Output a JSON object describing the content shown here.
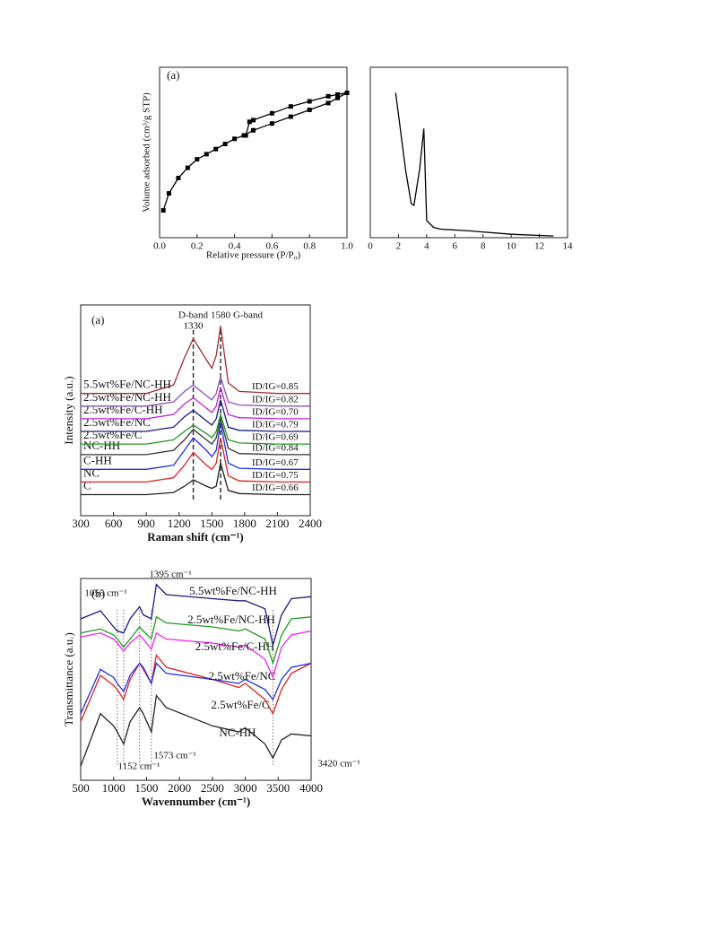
{
  "chart_data": [
    {
      "type": "line",
      "panel": "(a)",
      "xlabel": "Relative pressure (P/P₀)",
      "ylabel": "Volume adsorbed (cm³/g STP)",
      "xlim": [
        0,
        1.0
      ],
      "ylim": [
        0,
        100
      ],
      "xticks": [
        {
          "value": 0,
          "label": "0.0"
        },
        0.2,
        0.4,
        0.6,
        0.8,
        {
          "value": 1.0,
          "label": "1.0"
        }
      ],
      "markers": true,
      "series": [
        {
          "color": "#000000",
          "x": [
            0.02,
            0.05,
            0.1,
            0.15,
            0.2,
            0.25,
            0.3,
            0.35,
            0.4,
            0.45,
            0.5,
            0.6,
            0.7,
            0.8,
            0.9,
            0.95,
            1.0
          ],
          "values": [
            16,
            26,
            35,
            41,
            46,
            49,
            52,
            55,
            58,
            60,
            63,
            67,
            71,
            75,
            79,
            82,
            85
          ]
        },
        {
          "color": "#000000",
          "x": [
            1.0,
            0.95,
            0.9,
            0.8,
            0.7,
            0.6,
            0.5,
            0.48,
            0.46
          ],
          "values": [
            85,
            84,
            83,
            80,
            77,
            73,
            69,
            68,
            60
          ]
        }
      ]
    },
    {
      "type": "line",
      "xlim": [
        0,
        14
      ],
      "ylim": [
        0,
        100
      ],
      "xticks": [
        0,
        2,
        4,
        6,
        8,
        10,
        12,
        14
      ],
      "markers": false,
      "series": [
        {
          "color": "#000000",
          "x": [
            1.8,
            2.5,
            2.9,
            3.1,
            3.5,
            3.8,
            4.0,
            4.5,
            5,
            7,
            10,
            13
          ],
          "values": [
            85,
            40,
            20,
            19,
            40,
            64,
            10,
            6,
            5,
            4,
            2,
            1
          ]
        }
      ]
    },
    {
      "type": "line",
      "panel": "(a)",
      "xlabel": "Raman shift (cm⁻¹)",
      "ylabel": "Intensity (a.u.)",
      "xlim": [
        300,
        2400
      ],
      "ylim": [
        0,
        100
      ],
      "xticks": [
        300,
        600,
        900,
        1200,
        1500,
        1800,
        2100,
        2400
      ],
      "reference_lines": [
        {
          "value": 1330,
          "label": "D-band"
        },
        {
          "value": 1580,
          "label": "G-band"
        }
      ],
      "x": [
        300,
        900,
        1150,
        1250,
        1330,
        1450,
        1500,
        1540,
        1580,
        1650,
        1750,
        2100,
        2400
      ],
      "series": [
        {
          "name": "C",
          "color": "#222222",
          "ratio_label": "ID/IG=0.66",
          "values": [
            10,
            10,
            11,
            14,
            17,
            14,
            13,
            14,
            25,
            12,
            10.5,
            10,
            10
          ]
        },
        {
          "name": "NC",
          "color": "#e02020",
          "ratio_label": "ID/IG=0.75",
          "values": [
            16,
            16,
            18,
            24,
            30,
            24,
            22,
            25,
            37,
            19,
            16.5,
            16,
            16
          ]
        },
        {
          "name": "C-HH",
          "color": "#2030e0",
          "ratio_label": "ID/IG=0.67",
          "values": [
            22,
            22,
            24,
            31,
            37,
            31,
            28,
            31,
            44,
            25,
            22.5,
            22,
            22
          ]
        },
        {
          "name": "NC-HH",
          "color": "#333333",
          "ratio_label": "ID/IG=0.84",
          "values": [
            29,
            29,
            31,
            36,
            41,
            36,
            34,
            37,
            46,
            32,
            29.5,
            29,
            29
          ]
        },
        {
          "name": "2.5wt%Fe/C",
          "color": "#1f9a1f",
          "ratio_label": "ID/IG=0.69",
          "values": [
            34,
            34,
            36,
            40,
            43,
            39,
            37,
            40,
            48,
            36,
            34.5,
            34,
            34
          ]
        },
        {
          "name": "2.5wt%Fe/NC",
          "color": "#1a1a80",
          "ratio_label": "ID/IG=0.79",
          "values": [
            40,
            40,
            42,
            47,
            50,
            45,
            43,
            46,
            55,
            42,
            40.5,
            40,
            40
          ]
        },
        {
          "name": "2.5wt%Fe/C-HH",
          "color": "#c020e0",
          "ratio_label": "ID/IG=0.70",
          "values": [
            46,
            46,
            48,
            53,
            56,
            51,
            49,
            52,
            61,
            48,
            46.5,
            46,
            46
          ]
        },
        {
          "name": "2.5wt%Fe/NC-HH",
          "color": "#8a50c0",
          "ratio_label": "ID/IG=0.82",
          "values": [
            52,
            52,
            54,
            59,
            62,
            57,
            55,
            58,
            66,
            54,
            52.5,
            52,
            52
          ]
        },
        {
          "name": "5.5wt%Fe/NC-HH",
          "color": "#a03030",
          "ratio_label": "ID/IG=0.85",
          "values": [
            58,
            58,
            62,
            75,
            84,
            74,
            70,
            76,
            90,
            63,
            59,
            58,
            58
          ]
        }
      ]
    },
    {
      "type": "line",
      "panel": "(b)",
      "xlabel": "Wavennumber (cm⁻¹)",
      "ylabel": "Transmittance (a.u.)",
      "xlim": [
        500,
        4000
      ],
      "ylim": [
        0,
        100
      ],
      "xticks": [
        500,
        1000,
        1500,
        2000,
        2500,
        3000,
        3500,
        4000
      ],
      "reference_lines": [
        {
          "value": 1055,
          "label": "1055 cm⁻¹"
        },
        {
          "value": 1152,
          "label": "1152 cm⁻¹"
        },
        {
          "value": 1395,
          "label": "1395 cm⁻¹"
        },
        {
          "value": 1573,
          "label": "1573 cm⁻¹"
        },
        {
          "value": 3420,
          "label": "3420 cm⁻¹"
        }
      ],
      "x": [
        500,
        800,
        1000,
        1055,
        1152,
        1250,
        1395,
        1450,
        1573,
        1650,
        1800,
        2500,
        2900,
        3000,
        3300,
        3420,
        3550,
        3700,
        4000
      ],
      "series": [
        {
          "name": "NC-HH",
          "color": "#222222",
          "values": [
            7,
            33,
            27,
            24,
            18,
            29,
            36,
            33,
            24,
            42,
            36,
            27,
            24,
            26,
            18,
            11,
            20,
            23,
            22
          ]
        },
        {
          "name": "2.5wt%Fe/C",
          "color": "#e02020",
          "values": [
            29,
            52,
            47,
            45,
            40,
            50,
            58,
            55,
            48,
            62,
            56,
            50,
            46,
            48,
            40,
            33,
            45,
            53,
            58
          ]
        },
        {
          "name": "2.5wt%Fe/NC",
          "color": "#2030e0",
          "values": [
            33,
            55,
            51,
            48,
            44,
            52,
            58,
            56,
            48,
            58,
            53,
            50,
            48,
            50,
            45,
            40,
            50,
            56,
            58
          ]
        },
        {
          "name": "2.5wt%Fe/C-HH",
          "color": "#f020f0",
          "values": [
            71,
            73,
            70,
            68,
            64,
            68,
            72,
            70,
            65,
            73,
            70,
            68,
            66,
            67,
            60,
            51,
            66,
            72,
            74
          ]
        },
        {
          "name": "2.5wt%Fe/NC-HH",
          "color": "#1f9a1f",
          "values": [
            73,
            75,
            72,
            70,
            66,
            70,
            76,
            74,
            70,
            81,
            78,
            76,
            74,
            75,
            70,
            58,
            72,
            80,
            81
          ]
        },
        {
          "name": "5.5wt%Fe/NC-HH",
          "color": "#1a1a80",
          "values": [
            80,
            84,
            76,
            74,
            73,
            80,
            86,
            82,
            80,
            97,
            92,
            90,
            89,
            89,
            85,
            67,
            82,
            90,
            91
          ]
        }
      ]
    }
  ]
}
